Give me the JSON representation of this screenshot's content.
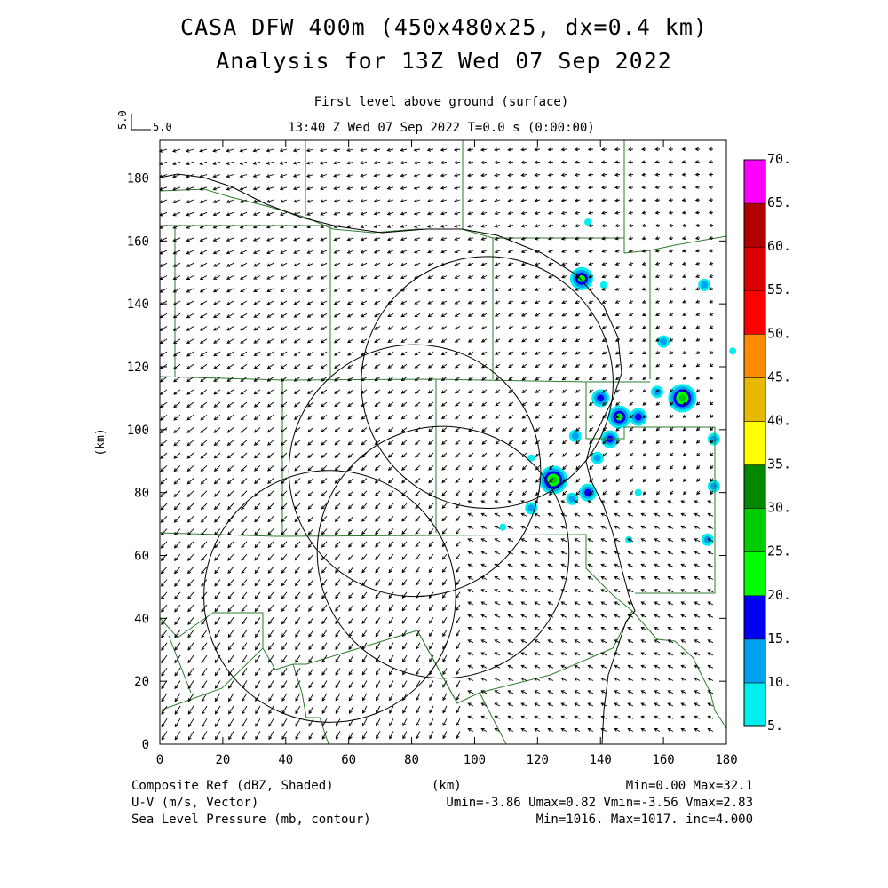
{
  "title": {
    "line1": "CASA DFW 400m (450x480x25, dx=0.4 km)",
    "line2": "Analysis for 13Z Wed 07 Sep 2022"
  },
  "subtitle": {
    "level": "First level above ground (surface)",
    "time": "13:40 Z Wed 07 Sep 2022    T=0.0 s (0:00:00)"
  },
  "vector_scale": {
    "label_left": "5.0",
    "label_right": "5.0"
  },
  "axes": {
    "xlabel": "(km)",
    "ylabel": "(km)",
    "xlim": [
      0,
      180
    ],
    "ylim": [
      0,
      192
    ],
    "xticks": [
      "0",
      "20",
      "40",
      "60",
      "80",
      "100",
      "120",
      "140",
      "160",
      "180"
    ],
    "yticks": [
      "0",
      "20",
      "40",
      "60",
      "80",
      "100",
      "120",
      "140",
      "160",
      "180"
    ]
  },
  "colorbar": {
    "labels": [
      "5.",
      "10.",
      "15.",
      "20.",
      "25.",
      "30.",
      "35.",
      "40.",
      "45.",
      "50.",
      "55.",
      "60.",
      "65.",
      "70."
    ],
    "colors": [
      "#00eeee",
      "#00a0f0",
      "#0000f0",
      "#00ff00",
      "#00cc00",
      "#008800",
      "#ffff00",
      "#e6b800",
      "#ff8c00",
      "#ff0000",
      "#dd0000",
      "#b00000",
      "#ff00ff"
    ]
  },
  "footer": {
    "left1": "Composite Ref (dBZ, Shaded)",
    "left2": "U-V (m/s, Vector)",
    "left3": "Sea Level Pressure (mb, contour)",
    "center1": "(km)",
    "right1": "Min=0.00 Max=32.1",
    "right2": "Umin=-3.86 Umax=0.82 Vmin=-3.56 Vmax=2.83",
    "right3": "Min=1016. Max=1017. inc=4.000"
  },
  "radar_rings": [
    {
      "center_km": [
        54,
        47
      ],
      "radius_km": 40
    },
    {
      "center_km": [
        81,
        87
      ],
      "radius_km": 40
    },
    {
      "center_km": [
        90,
        61
      ],
      "radius_km": 40
    },
    {
      "center_km": [
        104,
        115
      ],
      "radius_km": 40
    }
  ],
  "echo_cells_km": [
    [
      134,
      148,
      20
    ],
    [
      140,
      110,
      18
    ],
    [
      146,
      104,
      22
    ],
    [
      152,
      104,
      15
    ],
    [
      166,
      110,
      28
    ],
    [
      158,
      112,
      12
    ],
    [
      136,
      80,
      18
    ],
    [
      125,
      84,
      27
    ],
    [
      118,
      75,
      12
    ],
    [
      132,
      98,
      10
    ],
    [
      173,
      146,
      12
    ],
    [
      160,
      128,
      10
    ],
    [
      176,
      97,
      14
    ],
    [
      143,
      97,
      16
    ],
    [
      139,
      91,
      12
    ],
    [
      131,
      78,
      10
    ],
    [
      174,
      65,
      12
    ],
    [
      136,
      166,
      8
    ],
    [
      149,
      65,
      8
    ],
    [
      118,
      91,
      9
    ],
    [
      176,
      82,
      13
    ],
    [
      141,
      146,
      7
    ],
    [
      182,
      125,
      9
    ],
    [
      152,
      80,
      8
    ],
    [
      109,
      69,
      7
    ]
  ]
}
